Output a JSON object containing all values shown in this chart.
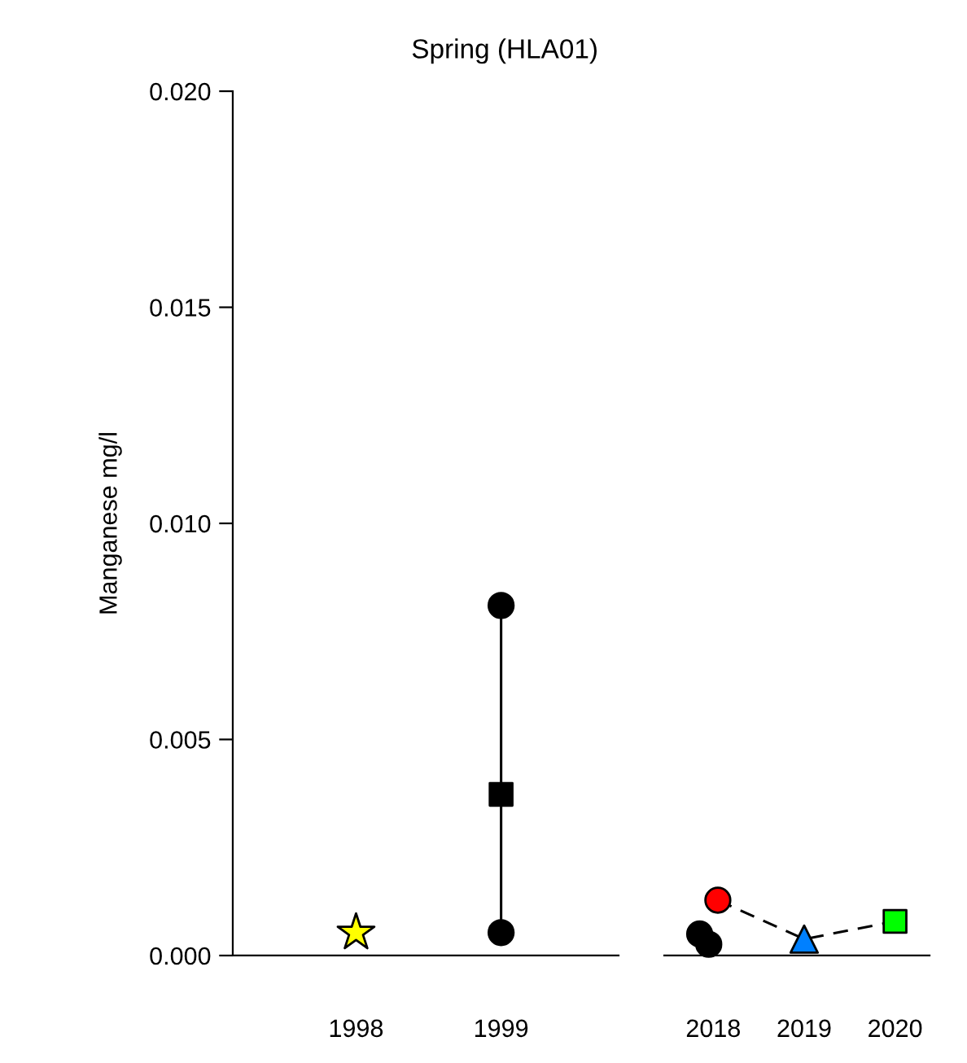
{
  "chart_data": [
    {
      "type": "scatter",
      "title": "Spring (HLA01)",
      "ylabel": "Manganese mg/l",
      "xlim": [
        1997.15,
        1999.81
      ],
      "xticks": [
        1998,
        1999
      ],
      "ylim": [
        0,
        0.02
      ],
      "yticks": [
        {
          "value": 0,
          "label": "0.000"
        },
        {
          "value": 0.005,
          "label": "0.005"
        },
        {
          "value": 0.01,
          "label": "0.010"
        },
        {
          "value": 0.015,
          "label": "0.015"
        },
        {
          "value": 0.02,
          "label": "0.020"
        }
      ],
      "grid": false,
      "legend": false,
      "series": [
        {
          "type": "line",
          "x": [
            1999,
            1999,
            1999
          ],
          "values": [
            0.0081,
            0.00373,
            0.00053
          ],
          "color": "#000000",
          "line_style": "solid",
          "marker": "none"
        },
        {
          "x": [
            1998
          ],
          "values": [
            0.00053
          ],
          "color": "#ffff00",
          "marker": "star"
        },
        {
          "x": [
            1999,
            1999
          ],
          "values": [
            0.0081,
            0.00053
          ],
          "color": "#000000",
          "marker": "circle"
        },
        {
          "x": [
            1999
          ],
          "values": [
            0.00373
          ],
          "color": "#000000",
          "marker": "square"
        }
      ]
    },
    {
      "type": "scatter",
      "xlim": [
        2017.46,
        2020.38
      ],
      "xticks": [
        2018,
        2019,
        2020
      ],
      "ylim": [
        0,
        0.02
      ],
      "tick_labels": "x",
      "grid": false,
      "legend": false,
      "series": [
        {
          "type": "line",
          "x": [
            2018.05,
            2019.0,
            2020.0
          ],
          "values": [
            0.00128,
            0.00038,
            0.00079
          ],
          "color": "#000000",
          "line_style": "dashed",
          "marker": "none"
        },
        {
          "x": [
            2017.85,
            2017.95
          ],
          "values": [
            0.0005,
            0.00026
          ],
          "color": "#000000",
          "marker": "circle"
        },
        {
          "x": [
            2018.05
          ],
          "values": [
            0.00128
          ],
          "color": "#ff0000",
          "marker": "circle"
        },
        {
          "x": [
            2019.0
          ],
          "values": [
            0.00038
          ],
          "color": "#0080ff",
          "marker": "triangle"
        },
        {
          "x": [
            2020.0
          ],
          "values": [
            0.00079
          ],
          "color": "#00ff00",
          "marker": "square"
        }
      ]
    }
  ]
}
